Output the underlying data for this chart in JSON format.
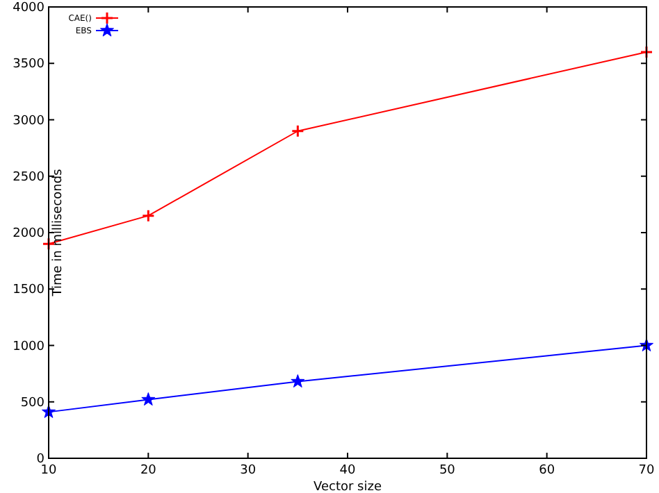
{
  "chart_data": {
    "type": "line",
    "xlabel": "Vector size",
    "ylabel": "Time in milliseconds",
    "x": [
      10,
      20,
      35,
      70
    ],
    "series": [
      {
        "name": "CAE()",
        "color": "#ff0000",
        "values": [
          1900,
          2150,
          2900,
          3600
        ],
        "marker": "cross"
      },
      {
        "name": "EBS",
        "color": "#0000ff",
        "values": [
          410,
          520,
          680,
          1000
        ],
        "marker": "star"
      }
    ],
    "xlim": [
      10,
      70
    ],
    "xticks": [
      10,
      20,
      30,
      40,
      50,
      60,
      70
    ],
    "ylim": [
      0,
      4000
    ],
    "yticks": [
      0,
      500,
      1000,
      1500,
      2000,
      2500,
      3000,
      3500,
      4000
    ],
    "grid": false,
    "legend": "top left"
  }
}
